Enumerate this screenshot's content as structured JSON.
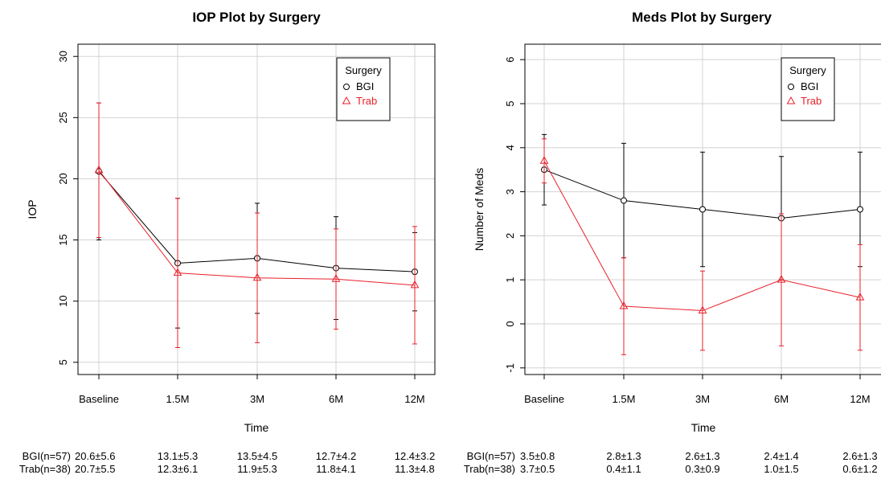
{
  "chart_data": [
    {
      "type": "line",
      "title": "IOP Plot by Surgery",
      "xlabel": "Time",
      "ylabel": "IOP",
      "categories": [
        "Baseline",
        "1.5M",
        "3M",
        "6M",
        "12M"
      ],
      "ylim": [
        4,
        31
      ],
      "yticks": [
        5,
        10,
        15,
        20,
        25,
        30
      ],
      "grid": true,
      "legend": {
        "title": "Surgery",
        "position": "top-right"
      },
      "series": [
        {
          "name": "BGI",
          "marker": "circle",
          "color": "#000000",
          "values": [
            20.6,
            13.1,
            13.5,
            12.7,
            12.4
          ],
          "sd": [
            5.6,
            5.3,
            4.5,
            4.2,
            3.2
          ]
        },
        {
          "name": "Trab",
          "marker": "triangle",
          "color": "#e8202a",
          "values": [
            20.7,
            12.3,
            11.9,
            11.8,
            11.3
          ],
          "sd": [
            5.5,
            6.1,
            5.3,
            4.1,
            4.8
          ]
        }
      ],
      "table": [
        {
          "label": "BGI(n=57)",
          "cells": [
            "20.6±5.6",
            "13.1±5.3",
            "13.5±4.5",
            "12.7±4.2",
            "12.4±3.2"
          ]
        },
        {
          "label": "Trab(n=38)",
          "cells": [
            "20.7±5.5",
            "12.3±6.1",
            "11.9±5.3",
            "11.8±4.1",
            "11.3±4.8"
          ]
        }
      ]
    },
    {
      "type": "line",
      "title": "Meds Plot by Surgery",
      "xlabel": "Time",
      "ylabel": "Number of Meds",
      "categories": [
        "Baseline",
        "1.5M",
        "3M",
        "6M",
        "12M"
      ],
      "ylim": [
        -1.15,
        6.35
      ],
      "yticks": [
        -1,
        0,
        1,
        2,
        3,
        4,
        5,
        6
      ],
      "grid": true,
      "legend": {
        "title": "Surgery",
        "position": "top-right"
      },
      "series": [
        {
          "name": "BGI",
          "marker": "circle",
          "color": "#000000",
          "values": [
            3.5,
            2.8,
            2.6,
            2.4,
            2.6
          ],
          "sd": [
            0.8,
            1.3,
            1.3,
            1.4,
            1.3
          ]
        },
        {
          "name": "Trab",
          "marker": "triangle",
          "color": "#e8202a",
          "values": [
            3.7,
            0.4,
            0.3,
            1.0,
            0.6
          ],
          "sd": [
            0.5,
            1.1,
            0.9,
            1.5,
            1.2
          ]
        }
      ],
      "table": [
        {
          "label": "BGI(n=57)",
          "cells": [
            "3.5±0.8",
            "2.8±1.3",
            "2.6±1.3",
            "2.4±1.4",
            "2.6±1.3"
          ]
        },
        {
          "label": "Trab(n=38)",
          "cells": [
            "3.7±0.5",
            "0.4±1.1",
            "0.3±0.9",
            "1.0±1.5",
            "0.6±1.2"
          ]
        }
      ]
    }
  ]
}
